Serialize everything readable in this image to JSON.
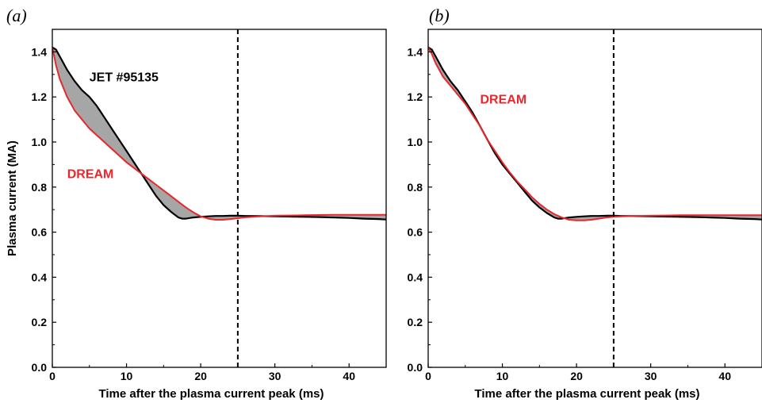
{
  "colors": {
    "jet": "#000000",
    "dream": "#e8262b",
    "shade": "#a6a6a6"
  },
  "chart_data": [
    {
      "type": "line",
      "panel_label": "(a)",
      "xlabel": "Time after the plasma current peak (ms)",
      "ylabel": "Plasma current (MA)",
      "xlim": [
        0,
        45
      ],
      "ylim": [
        0,
        1.5
      ],
      "xticks": [
        0,
        10,
        20,
        30,
        40
      ],
      "yticks": [
        0.0,
        0.2,
        0.4,
        0.6,
        0.8,
        1.0,
        1.2,
        1.4
      ],
      "xtick_labels": [
        "0",
        "10",
        "20",
        "30",
        "40"
      ],
      "ytick_labels": [
        "0.0",
        "0.2",
        "0.4",
        "0.6",
        "0.8",
        "1.0",
        "1.2",
        "1.4"
      ],
      "grid": false,
      "vline": 25,
      "shade_between_series": true,
      "series": [
        {
          "name": "JET #95135",
          "color": "jet",
          "x": [
            0,
            0.5,
            1,
            2,
            3,
            4,
            5,
            6,
            7,
            8,
            9,
            10,
            11,
            12,
            13,
            14,
            15,
            16,
            17,
            17.5,
            18,
            19,
            20,
            21,
            22,
            23,
            24,
            25,
            26,
            28,
            30,
            32,
            34,
            36,
            38,
            40,
            42,
            44,
            45
          ],
          "y": [
            1.42,
            1.41,
            1.38,
            1.32,
            1.27,
            1.23,
            1.2,
            1.16,
            1.11,
            1.06,
            1.01,
            0.96,
            0.91,
            0.86,
            0.81,
            0.76,
            0.72,
            0.69,
            0.665,
            0.66,
            0.66,
            0.665,
            0.668,
            0.67,
            0.672,
            0.672,
            0.673,
            0.673,
            0.672,
            0.671,
            0.67,
            0.669,
            0.668,
            0.667,
            0.665,
            0.663,
            0.66,
            0.658,
            0.656
          ]
        },
        {
          "name": "DREAM",
          "color": "dream",
          "x": [
            0,
            0.5,
            1,
            2,
            3,
            4,
            5,
            6,
            7,
            8,
            9,
            10,
            11,
            12,
            13,
            14,
            15,
            16,
            17,
            18,
            19,
            20,
            21,
            22,
            23,
            24,
            25,
            26,
            28,
            30,
            32,
            34,
            36,
            38,
            40,
            42,
            44,
            45
          ],
          "y": [
            1.42,
            1.34,
            1.28,
            1.2,
            1.14,
            1.1,
            1.06,
            1.03,
            1.0,
            0.97,
            0.94,
            0.91,
            0.885,
            0.86,
            0.835,
            0.81,
            0.785,
            0.76,
            0.735,
            0.71,
            0.688,
            0.67,
            0.66,
            0.655,
            0.655,
            0.658,
            0.662,
            0.666,
            0.67,
            0.673,
            0.674,
            0.675,
            0.676,
            0.677,
            0.677,
            0.677,
            0.677,
            0.677
          ]
        }
      ],
      "annotations": [
        {
          "text": "JET #95135",
          "x": 5,
          "y": 1.27,
          "color": "jet"
        },
        {
          "text": "DREAM",
          "x": 2,
          "y": 0.84,
          "color": "dream"
        }
      ]
    },
    {
      "type": "line",
      "panel_label": "(b)",
      "xlabel": "Time after the plasma current peak (ms)",
      "ylabel": "",
      "xlim": [
        0,
        45
      ],
      "ylim": [
        0,
        1.5
      ],
      "xticks": [
        0,
        10,
        20,
        30,
        40
      ],
      "yticks": [
        0.0,
        0.2,
        0.4,
        0.6,
        0.8,
        1.0,
        1.2,
        1.4
      ],
      "xtick_labels": [
        "0",
        "10",
        "20",
        "30",
        "40"
      ],
      "ytick_labels": [
        "0.0",
        "0.2",
        "0.4",
        "0.6",
        "0.8",
        "1.0",
        "1.2",
        "1.4"
      ],
      "grid": false,
      "vline": 25,
      "shade_between_series": true,
      "series": [
        {
          "color": "jet",
          "x": [
            0,
            0.5,
            1,
            2,
            3,
            4,
            5,
            6,
            7,
            8,
            9,
            10,
            11,
            12,
            13,
            14,
            15,
            16,
            17,
            17.5,
            18,
            19,
            20,
            21,
            22,
            23,
            24,
            25,
            26,
            28,
            30,
            32,
            34,
            36,
            38,
            40,
            42,
            44,
            45
          ],
          "y": [
            1.42,
            1.41,
            1.38,
            1.32,
            1.27,
            1.23,
            1.18,
            1.13,
            1.07,
            1.01,
            0.95,
            0.9,
            0.86,
            0.82,
            0.78,
            0.74,
            0.71,
            0.685,
            0.665,
            0.66,
            0.66,
            0.665,
            0.668,
            0.67,
            0.672,
            0.672,
            0.673,
            0.673,
            0.672,
            0.671,
            0.67,
            0.669,
            0.668,
            0.667,
            0.665,
            0.663,
            0.66,
            0.658,
            0.656
          ]
        },
        {
          "name": "DREAM",
          "color": "dream",
          "x": [
            0,
            0.5,
            1,
            2,
            3,
            4,
            5,
            6,
            7,
            8,
            9,
            10,
            11,
            12,
            13,
            14,
            15,
            16,
            17,
            18,
            19,
            20,
            21,
            22,
            23,
            24,
            25,
            26,
            28,
            30,
            32,
            34,
            36,
            38,
            40,
            42,
            44,
            45
          ],
          "y": [
            1.42,
            1.39,
            1.35,
            1.29,
            1.25,
            1.21,
            1.17,
            1.12,
            1.07,
            1.01,
            0.96,
            0.91,
            0.865,
            0.825,
            0.79,
            0.755,
            0.725,
            0.7,
            0.68,
            0.665,
            0.655,
            0.652,
            0.652,
            0.655,
            0.66,
            0.665,
            0.668,
            0.67,
            0.672,
            0.673,
            0.674,
            0.675,
            0.675,
            0.675,
            0.675,
            0.675,
            0.675,
            0.675
          ]
        }
      ],
      "annotations": [
        {
          "text": "DREAM",
          "x": 7,
          "y": 1.17,
          "color": "dream"
        }
      ]
    }
  ]
}
